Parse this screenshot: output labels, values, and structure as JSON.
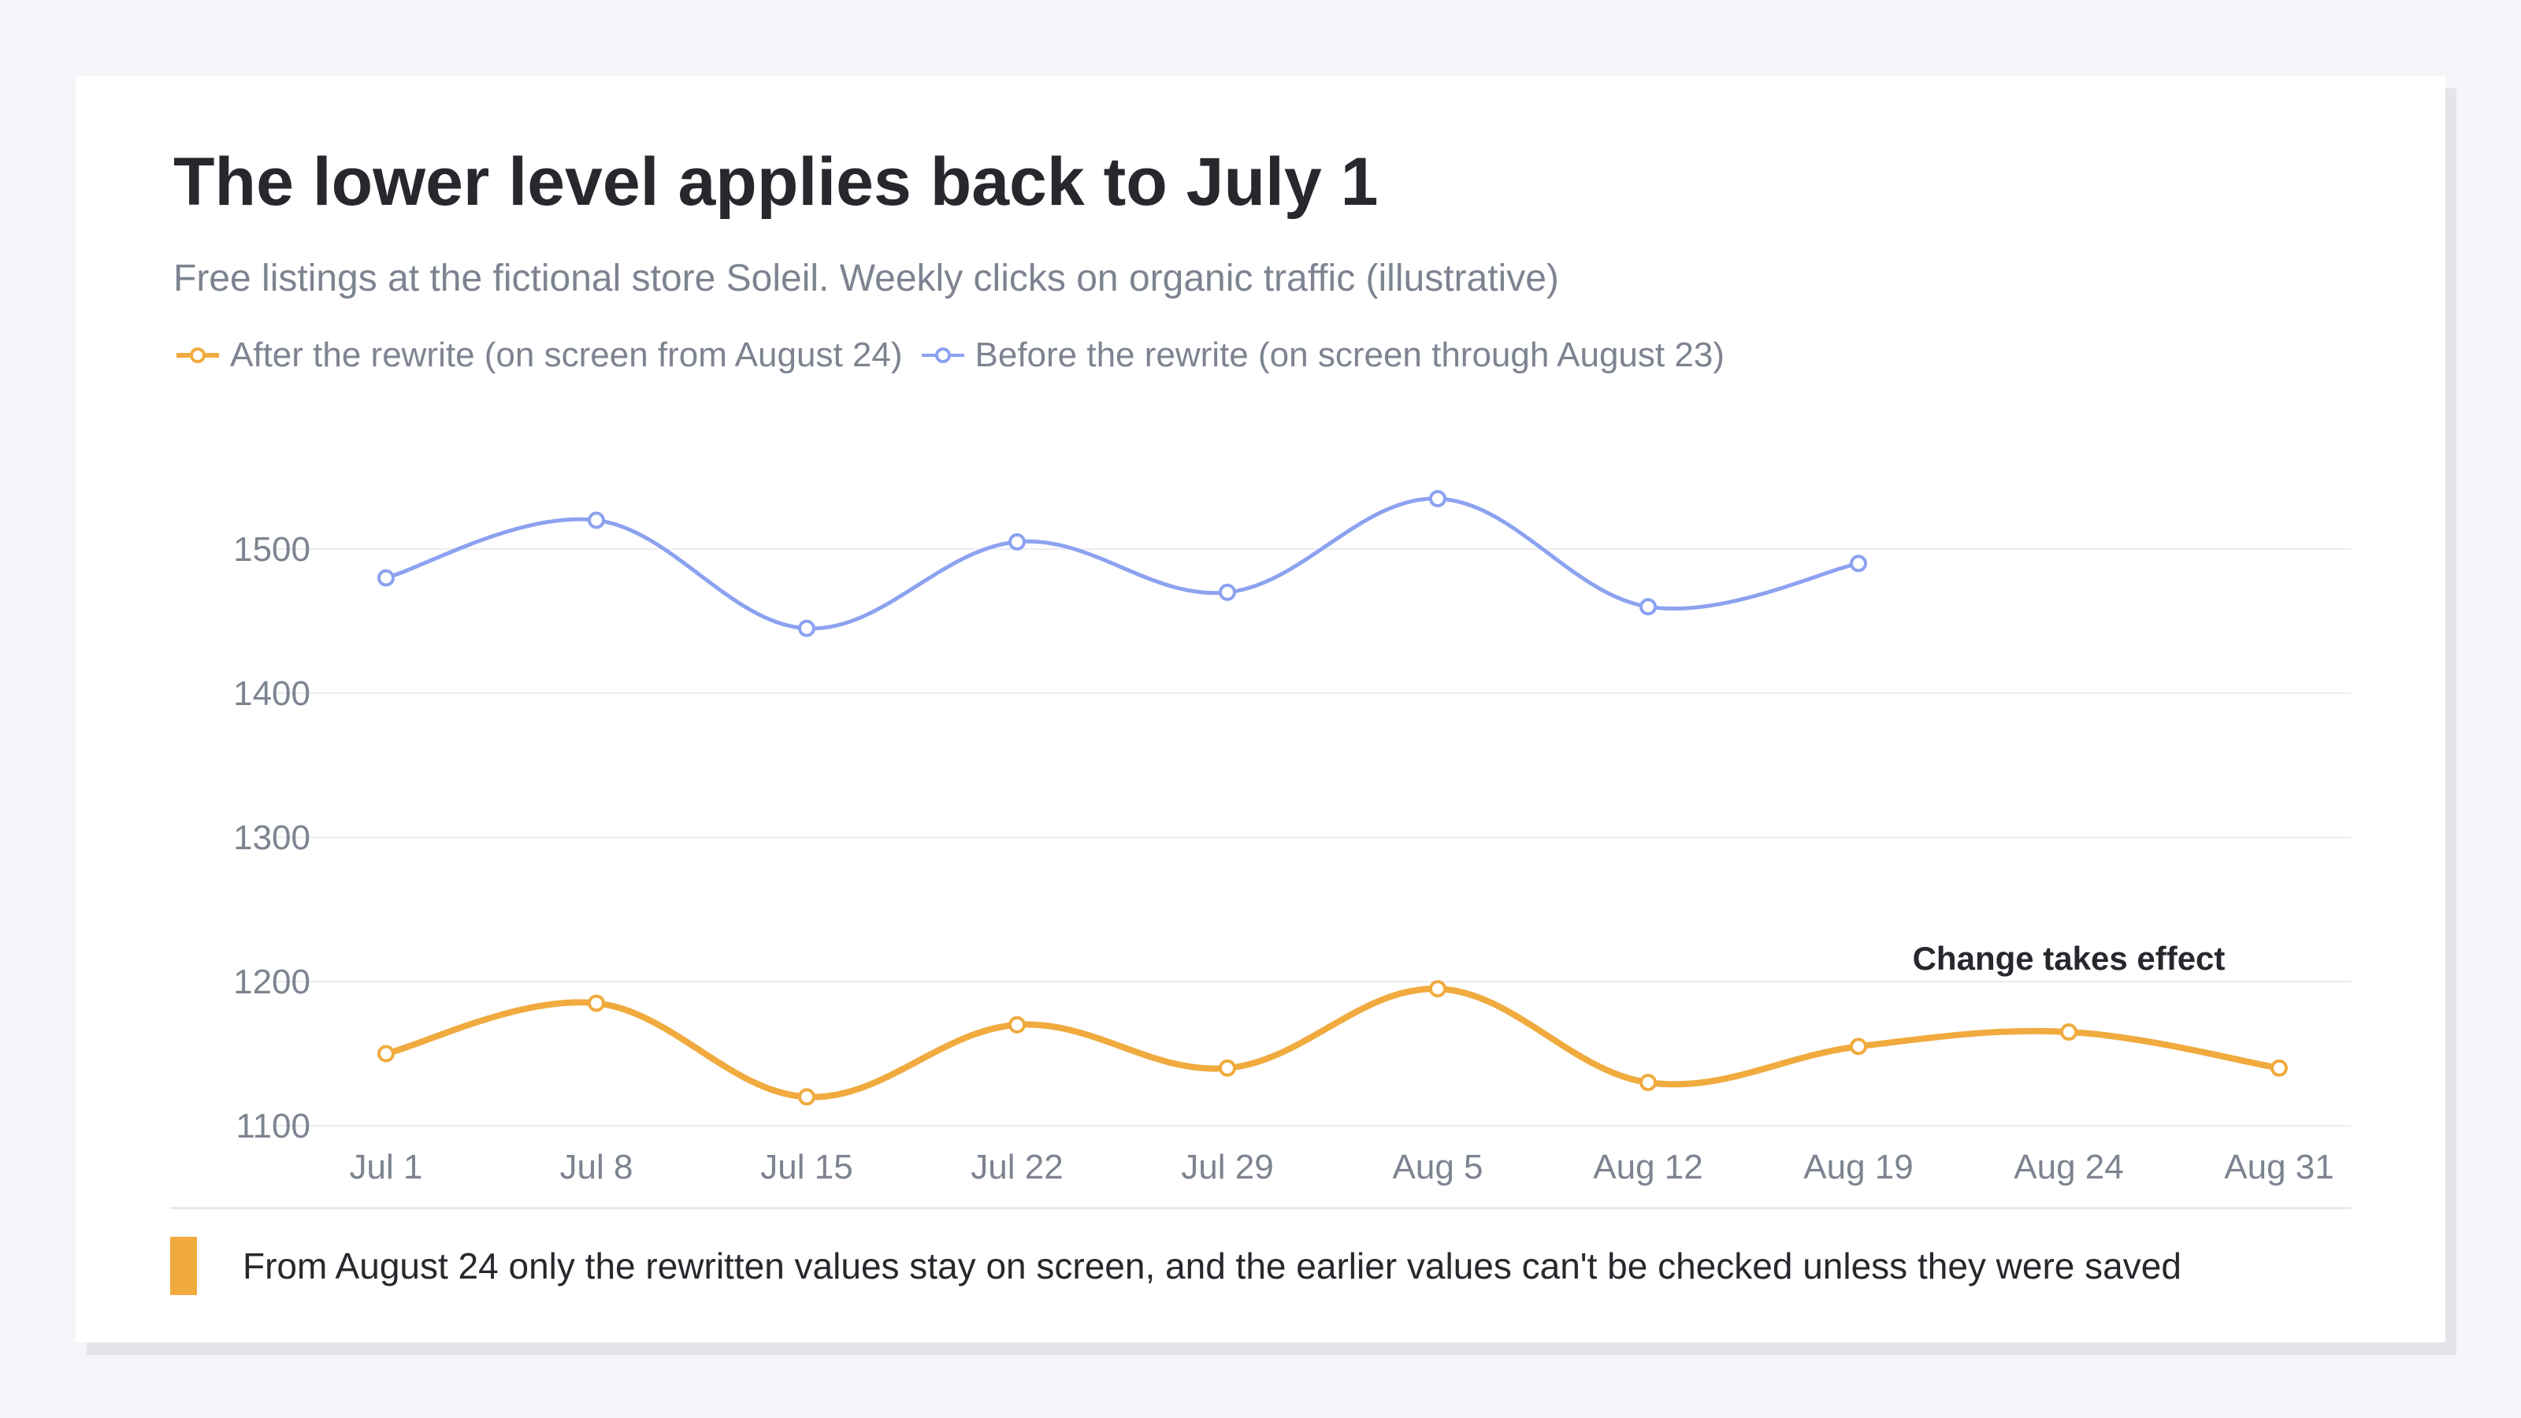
{
  "title": "The lower level applies back to July 1",
  "subtitle": "Free listings at the fictional store Soleil. Weekly clicks on organic traffic (illustrative)",
  "colors": {
    "after": "#f0aa3e",
    "before": "#8ca2f0",
    "grid": "#ececef",
    "axis_text": "#7d8390",
    "annotation": "#26282d"
  },
  "legend": [
    {
      "label": "After the rewrite (on screen from August 24)",
      "series": "after"
    },
    {
      "label": "Before the rewrite (on screen through August 23)",
      "series": "before"
    }
  ],
  "annotation": {
    "label": "Change takes effect",
    "at": "Aug 24"
  },
  "footnote": "From August 24 only the rewritten values stay on screen, and the earlier values can't be checked unless they were saved",
  "chart_data": {
    "type": "line",
    "categories": [
      "Jul 1",
      "Jul 8",
      "Jul 15",
      "Jul 22",
      "Jul 29",
      "Aug 5",
      "Aug 12",
      "Aug 19",
      "Aug 24",
      "Aug 31"
    ],
    "yticks": [
      1100,
      1200,
      1300,
      1400,
      1500
    ],
    "ylim": [
      1100,
      1500
    ],
    "grid": true,
    "legend_position": "top-left",
    "series": [
      {
        "key": "after",
        "name": "After the rewrite (on screen from August 24)",
        "values": [
          1150,
          1185,
          1120,
          1170,
          1140,
          1195,
          1130,
          1155,
          1165,
          1140
        ]
      },
      {
        "key": "before",
        "name": "Before the rewrite (on screen through August 23)",
        "values": [
          1480,
          1520,
          1445,
          1505,
          1470,
          1535,
          1460,
          1490,
          null,
          null
        ]
      }
    ]
  }
}
